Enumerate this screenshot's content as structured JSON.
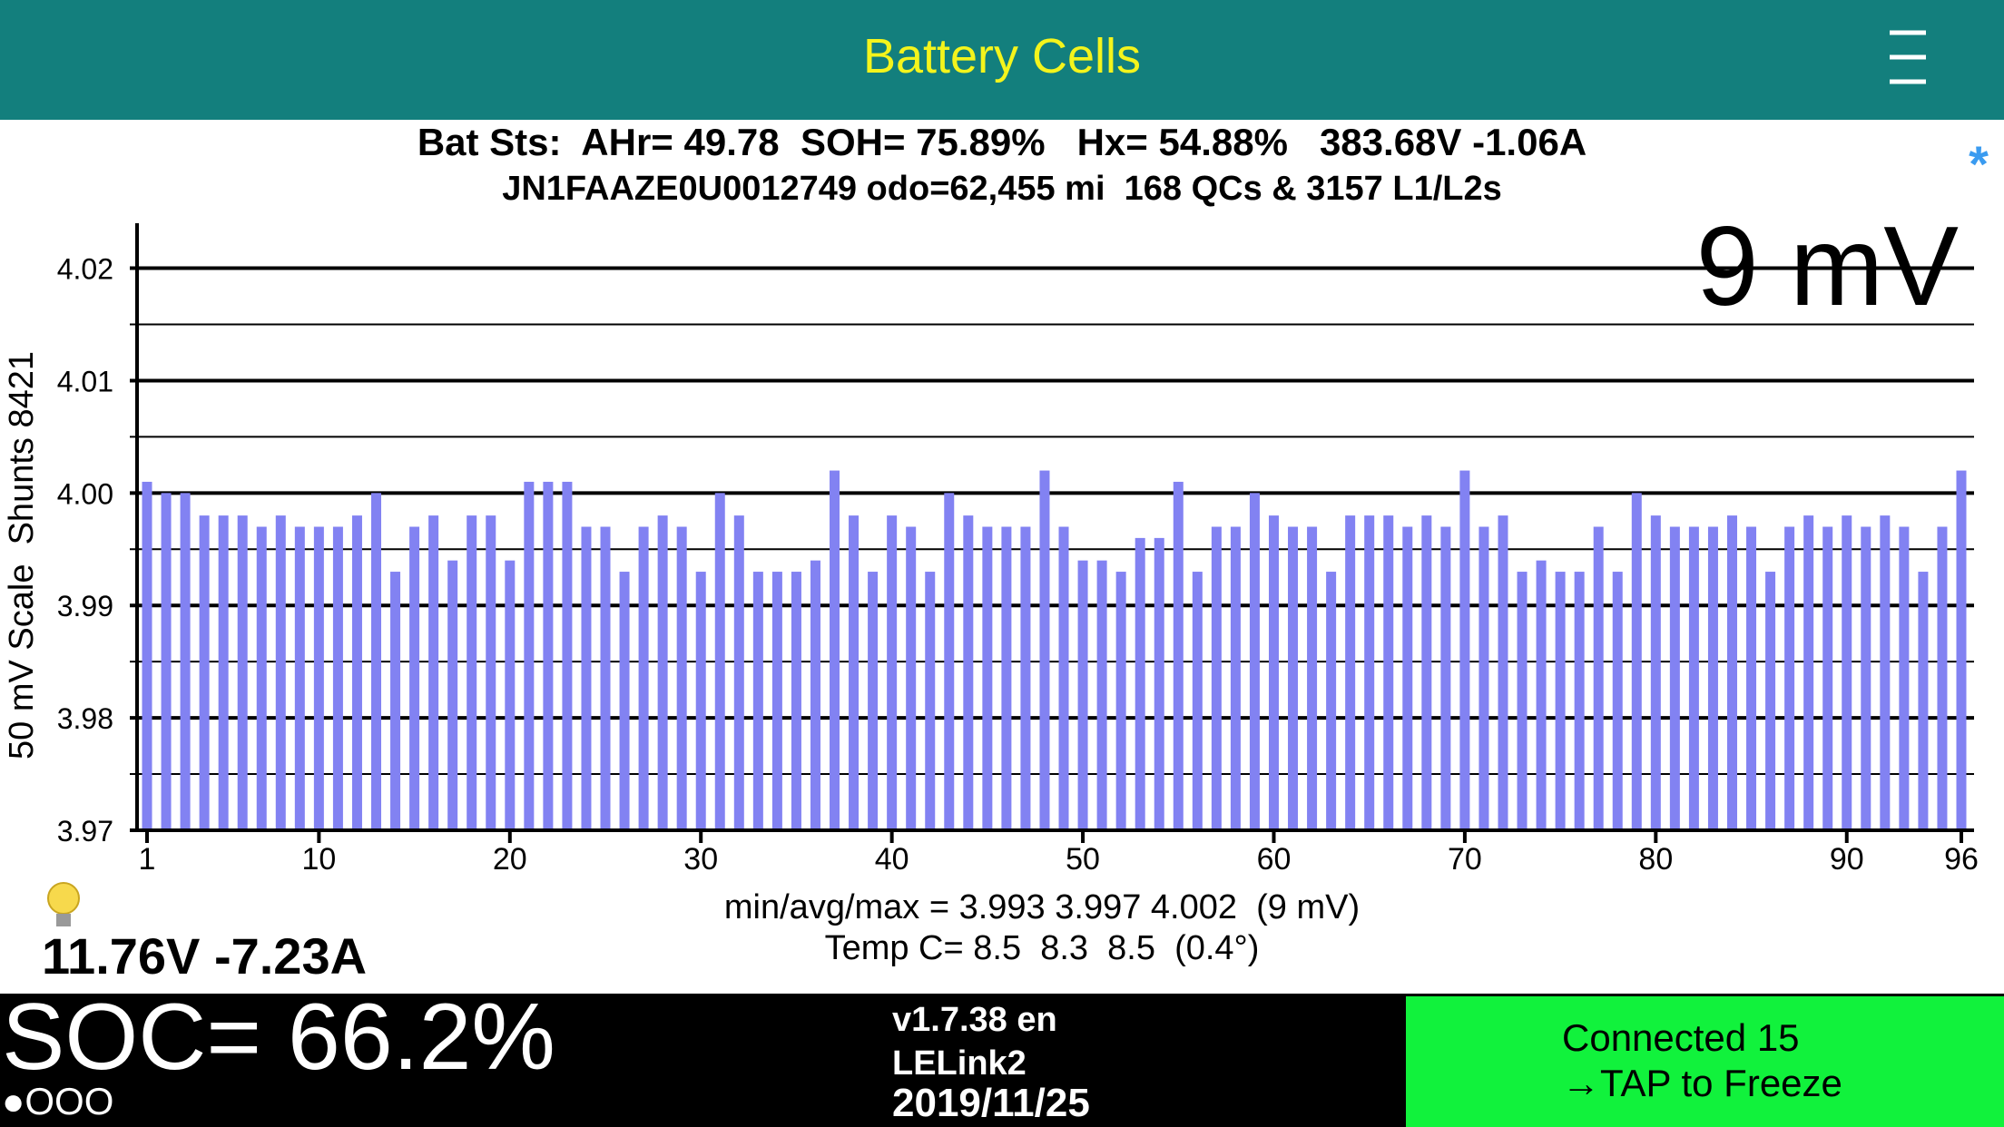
{
  "header": {
    "title": "Battery Cells"
  },
  "status": {
    "line1": "Bat Sts:  AHr= 49.78  SOH= 75.89%   Hx= 54.88%   383.68V -1.06A",
    "line2": "JN1FAAZE0U0012749 odo=62,455 mi  168 QCs & 3157 L1/L2s",
    "indicator": "*"
  },
  "chart_data": {
    "type": "bar",
    "y_label": "50 mV Scale  Shunts 8421",
    "annotation": "9 mV",
    "color": "#8282f2",
    "grid": true,
    "categories": [
      "1",
      null,
      null,
      null,
      null,
      null,
      null,
      null,
      null,
      "10",
      null,
      null,
      null,
      null,
      null,
      null,
      null,
      null,
      null,
      "20",
      null,
      null,
      null,
      null,
      null,
      null,
      null,
      null,
      null,
      "30",
      null,
      null,
      null,
      null,
      null,
      null,
      null,
      null,
      null,
      "40",
      null,
      null,
      null,
      null,
      null,
      null,
      null,
      null,
      null,
      "50",
      null,
      null,
      null,
      null,
      null,
      null,
      null,
      null,
      null,
      "60",
      null,
      null,
      null,
      null,
      null,
      null,
      null,
      null,
      null,
      "70",
      null,
      null,
      null,
      null,
      null,
      null,
      null,
      null,
      null,
      "80",
      null,
      null,
      null,
      null,
      null,
      null,
      null,
      null,
      null,
      "90",
      null,
      null,
      null,
      null,
      null,
      "96"
    ],
    "values": [
      4.001,
      4.0,
      4.0,
      3.998,
      3.998,
      3.998,
      3.997,
      3.998,
      3.997,
      3.997,
      3.997,
      3.998,
      4.0,
      3.993,
      3.997,
      3.998,
      3.994,
      3.998,
      3.998,
      3.994,
      4.001,
      4.001,
      4.001,
      3.997,
      3.997,
      3.993,
      3.997,
      3.998,
      3.997,
      3.993,
      4.0,
      3.998,
      3.993,
      3.993,
      3.993,
      3.994,
      4.002,
      3.998,
      3.993,
      3.998,
      3.997,
      3.993,
      4.0,
      3.998,
      3.997,
      3.997,
      3.997,
      4.002,
      3.997,
      3.994,
      3.994,
      3.993,
      3.996,
      3.996,
      4.001,
      3.993,
      3.997,
      3.997,
      4.0,
      3.998,
      3.997,
      3.997,
      3.993,
      3.998,
      3.998,
      3.998,
      3.997,
      3.998,
      3.997,
      4.002,
      3.997,
      3.998,
      3.993,
      3.994,
      3.993,
      3.993,
      3.997,
      3.993,
      4.0,
      3.998,
      3.997,
      3.997,
      3.997,
      3.998,
      3.997,
      3.993,
      3.997,
      3.998,
      3.997,
      3.998,
      3.997,
      3.998,
      3.997,
      3.993,
      3.997,
      4.002
    ],
    "ylim": [
      3.97,
      4.024
    ],
    "yticks": [
      3.97,
      3.98,
      3.99,
      {
        "value": 4,
        "label": "4.00"
      },
      4.01,
      4.02
    ]
  },
  "stats": {
    "range": "min/avg/max = 3.993 3.997 4.002  (9 mV)",
    "temp": "Temp C= 8.5  8.3  8.5  (0.4°)",
    "aux": "11.76V -7.23A"
  },
  "footer": {
    "soc": "SOC= 66.2%",
    "dots": "●OOO",
    "version": "v1.7.38 en",
    "adapter": "LELink2",
    "date": "2019/11/25",
    "connection": "Connected 15",
    "action": "→TAP to Freeze"
  }
}
